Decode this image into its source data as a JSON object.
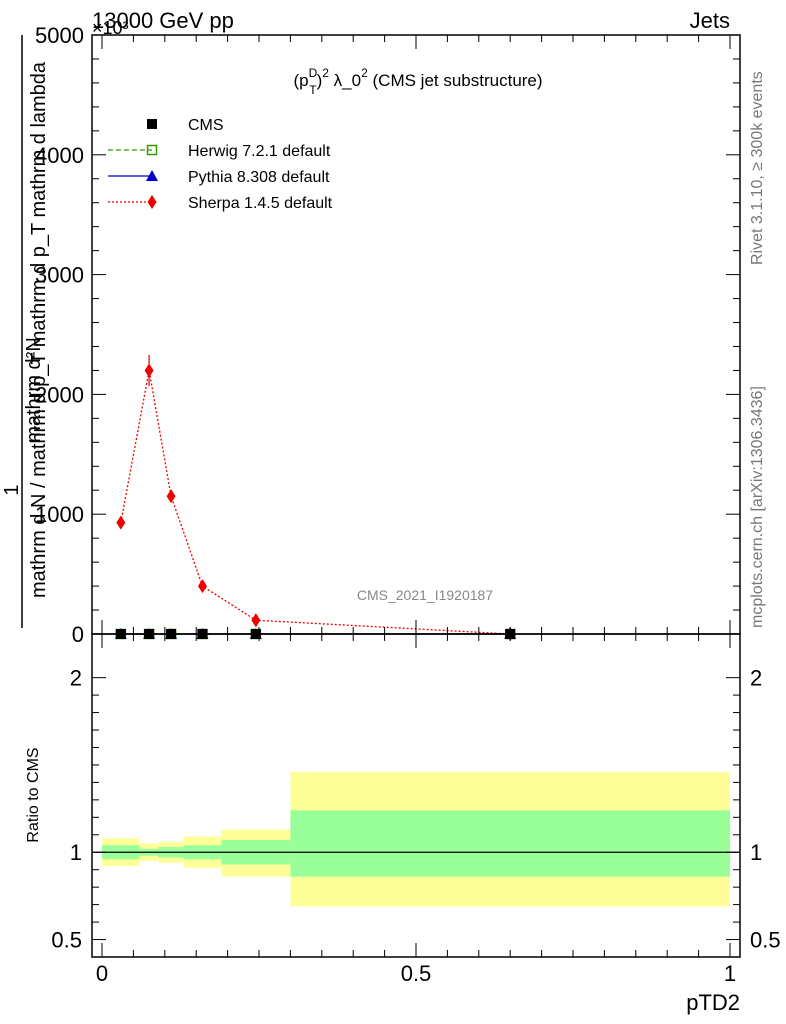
{
  "header": {
    "energy": "13000 GeV pp",
    "category": "Jets",
    "exponent": "×10³"
  },
  "side_labels": {
    "rivet": "Rivet 3.1.10, ≥ 300k events",
    "mcplots": "mcplots.cern.ch [arXiv:1306.3436]"
  },
  "watermark": "CMS_2021_I1920187",
  "chart_data": [
    {
      "type": "line",
      "title": "(p_T^D)^2 λ_0^2 (CMS jet substructure)",
      "title_parts": {
        "a": "(p",
        "sup1": "D",
        "sub1": "T",
        "b": ")",
        "sup2": "2",
        "c": " λ_0",
        "sup3": "2",
        "d": " (CMS jet substructure)"
      },
      "ylabel_numerator": "mathrm d²N",
      "ylabel_denominator": "mathrm d N / mathrm d p_T mathrm d p_T mathrm d lambda",
      "ylabel_prefix": "1",
      "xlim": [
        0,
        1
      ],
      "ylim": [
        0,
        5000
      ],
      "y_scale_note": "×10³",
      "y_ticks": [
        0,
        1000,
        2000,
        3000,
        4000,
        5000
      ],
      "y_tick_labels": [
        "0",
        "1000",
        "2000",
        "3000",
        "4000",
        "5000"
      ],
      "legend_position": "top-left",
      "series": [
        {
          "name": "CMS",
          "color": "#000000",
          "marker": "square",
          "x": [
            0.03,
            0.075,
            0.11,
            0.16,
            0.245,
            0.65
          ],
          "y": [
            0,
            0,
            0,
            0,
            0,
            0
          ]
        },
        {
          "name": "Herwig 7.2.1 default",
          "color": "#339900",
          "marker": "open-square",
          "line": "dashed",
          "x": [
            0.03,
            0.075,
            0.11,
            0.16,
            0.245,
            0.65
          ],
          "y": [
            0,
            0,
            0,
            0,
            0,
            0
          ]
        },
        {
          "name": "Pythia 8.308 default",
          "color": "#0000cc",
          "marker": "triangle",
          "line": "solid",
          "x": [
            0.03,
            0.075,
            0.11,
            0.16,
            0.245,
            0.65
          ],
          "y": [
            0,
            0,
            0,
            0,
            0,
            0
          ]
        },
        {
          "name": "Sherpa 1.4.5 default",
          "color": "#ee0000",
          "marker": "diamond",
          "line": "dotted",
          "x": [
            0.03,
            0.075,
            0.11,
            0.16,
            0.245,
            0.65
          ],
          "y": [
            930,
            2200,
            1150,
            400,
            115,
            0
          ],
          "yerr": [
            40,
            130,
            40,
            20,
            10,
            0
          ]
        }
      ]
    },
    {
      "type": "area",
      "ylabel": "Ratio to CMS",
      "xlabel": "pTD2",
      "xlim": [
        0,
        1
      ],
      "ylim": [
        0.4,
        2.25
      ],
      "y_ticks": [
        0.5,
        1,
        2
      ],
      "y_tick_labels": [
        "0.5",
        "1",
        "2"
      ],
      "x_ticks": [
        0,
        0.5,
        1
      ],
      "x_tick_labels": [
        "0",
        "0.5",
        "1"
      ],
      "bands": {
        "bins": [
          [
            0,
            0.06
          ],
          [
            0.06,
            0.09
          ],
          [
            0.09,
            0.13
          ],
          [
            0.13,
            0.19
          ],
          [
            0.19,
            0.3
          ],
          [
            0.3,
            1.0
          ]
        ],
        "inner_low": [
          0.96,
          0.98,
          0.97,
          0.96,
          0.93,
          0.86
        ],
        "inner_high": [
          1.04,
          1.02,
          1.03,
          1.04,
          1.07,
          1.24
        ],
        "outer_low": [
          0.92,
          0.95,
          0.94,
          0.91,
          0.86,
          0.69
        ],
        "outer_high": [
          1.08,
          1.05,
          1.06,
          1.09,
          1.13,
          1.46
        ],
        "inner_color": "#99ff99",
        "outer_color": "#ffff99"
      }
    }
  ]
}
